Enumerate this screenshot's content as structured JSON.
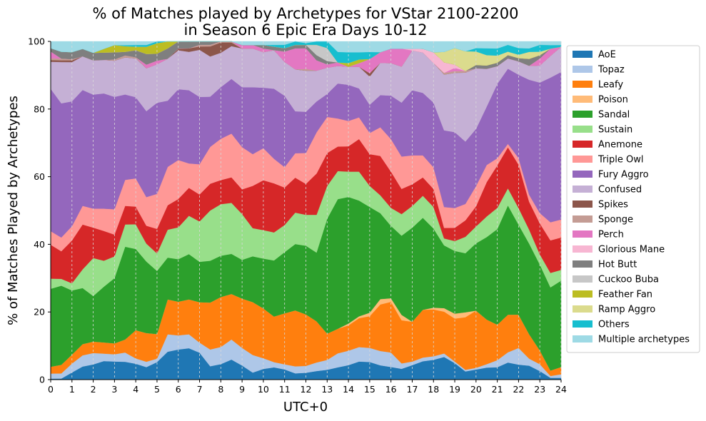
{
  "chart_data": {
    "type": "area",
    "stacked": true,
    "title_lines": [
      "% of Matches played by Archetypes for VStar 2100-2200",
      "in Season 6 Epic Era Days 10-12"
    ],
    "xlabel": "UTC+0",
    "ylabel": "% of Matches Played by Archetypes",
    "xlim": [
      0,
      24
    ],
    "ylim": [
      0,
      100
    ],
    "x_ticks": [
      "0",
      "1",
      "2",
      "3",
      "4",
      "5",
      "6",
      "7",
      "8",
      "9",
      "10",
      "11",
      "12",
      "13",
      "14",
      "15",
      "16",
      "17",
      "18",
      "19",
      "20",
      "21",
      "22",
      "23",
      "24"
    ],
    "y_ticks": [
      "0",
      "20",
      "40",
      "60",
      "80",
      "100"
    ],
    "grid": "vertical dashed",
    "legend_position": "outside right",
    "x": [
      0,
      0.5,
      1,
      1.5,
      2,
      2.5,
      3,
      3.5,
      4,
      4.5,
      5,
      5.5,
      6,
      6.5,
      7,
      7.5,
      8,
      8.5,
      9,
      9.5,
      10,
      10.5,
      11,
      11.5,
      12,
      12.5,
      13,
      13.5,
      14,
      14.5,
      15,
      15.5,
      16,
      16.5,
      17,
      17.5,
      18,
      18.5,
      19,
      19.5,
      20,
      20.5,
      21,
      21.5,
      22,
      22.5,
      23,
      23.5,
      24
    ],
    "series": [
      {
        "name": "AoE",
        "color": "#1f77b4",
        "values": [
          0.3,
          0.3,
          2,
          3.5,
          4,
          5,
          5,
          4.8,
          4.5,
          3.5,
          5,
          8,
          8.5,
          9,
          8,
          4,
          4.5,
          5.5,
          4,
          2,
          3,
          3.5,
          3,
          1.8,
          2,
          2.5,
          3,
          3.5,
          4,
          5,
          5,
          4,
          3.5,
          3,
          4,
          5,
          5.5,
          6.5,
          5,
          2.5,
          3,
          3.5,
          3.5,
          5,
          4.5,
          4,
          2.5,
          0.5,
          0.5
        ]
      },
      {
        "name": "Topaz",
        "color": "#aec7e8",
        "values": [
          1.5,
          1.5,
          2.5,
          3,
          3,
          2,
          2,
          2.5,
          1.5,
          1.5,
          1,
          5,
          4,
          4,
          3,
          5,
          5,
          5.5,
          5,
          5,
          3,
          1.5,
          1.5,
          2,
          2,
          2.5,
          3,
          4,
          4,
          4,
          4,
          4,
          4,
          1.5,
          1,
          1,
          1,
          1,
          0.5,
          0.5,
          0.5,
          1,
          2,
          3,
          5,
          2,
          2,
          0.5,
          1
        ]
      },
      {
        "name": "Leafy",
        "color": "#ff7f0e",
        "values": [
          2,
          2.5,
          2.5,
          3,
          3,
          3,
          3,
          3.5,
          8,
          8,
          7,
          10,
          9.5,
          10,
          12,
          14,
          14.5,
          12.5,
          14,
          15,
          14,
          13,
          15,
          16,
          15,
          12,
          8,
          7,
          7,
          8,
          9,
          13,
          14,
          12,
          11,
          13,
          13,
          12,
          13,
          16,
          17,
          13,
          10,
          11,
          10,
          7,
          4,
          1.5,
          2
        ]
      },
      {
        "name": "Poison",
        "color": "#ffbb78",
        "values": [
          0,
          0,
          0,
          0,
          0,
          0,
          0,
          0,
          0,
          0,
          0,
          0,
          0,
          0,
          0,
          0,
          0,
          0,
          0,
          0,
          0,
          0,
          0,
          0,
          0,
          0,
          0,
          0,
          0.5,
          0.5,
          1,
          1.5,
          1,
          1.5,
          0,
          0,
          0.5,
          1,
          1.5,
          1.5,
          0,
          0,
          0,
          0,
          0,
          0,
          0,
          0,
          0
        ]
      },
      {
        "name": "Sandal",
        "color": "#2ca02c",
        "values": [
          23,
          23,
          18,
          15,
          12,
          15,
          18,
          25,
          23,
          20,
          18,
          12,
          12,
          13,
          12,
          12.5,
          12,
          11,
          11,
          13,
          14,
          16,
          18,
          19,
          20,
          20,
          35,
          37,
          35,
          32,
          30,
          24,
          20,
          22,
          26,
          25,
          22,
          18,
          19,
          18,
          20,
          24,
          27,
          32,
          27,
          26,
          25,
          23,
          24
        ]
      },
      {
        "name": "Sustain",
        "color": "#98df8a",
        "values": [
          3,
          2,
          2,
          5,
          10,
          7,
          6,
          6,
          7,
          5,
          5,
          8,
          9,
          11,
          12,
          15,
          15,
          14,
          13,
          8,
          8,
          8,
          8,
          9,
          9,
          11,
          10,
          8,
          7,
          8,
          6,
          5,
          5,
          6,
          6,
          6,
          6,
          2,
          3,
          5,
          5,
          6,
          6,
          5,
          5,
          4,
          3,
          4,
          3
        ]
      },
      {
        "name": "Anemone",
        "color": "#d62728",
        "values": [
          10,
          8,
          12,
          12,
          8,
          8,
          6,
          5,
          5,
          5,
          7,
          7,
          8,
          8,
          8,
          8,
          7,
          7,
          7,
          12,
          14,
          14,
          11,
          10,
          9,
          12,
          10,
          7,
          7,
          9,
          9,
          11,
          10,
          7,
          6,
          5,
          5,
          3,
          4,
          5,
          6,
          10,
          12,
          12,
          13,
          8,
          9,
          9,
          9
        ]
      },
      {
        "name": "Triple Owl",
        "color": "#ff9896",
        "values": [
          4,
          4,
          4,
          5,
          5,
          6,
          7,
          7,
          8,
          8,
          10,
          11,
          11,
          7,
          9,
          11,
          12,
          12,
          12,
          9,
          9,
          7,
          6,
          7,
          9,
          12,
          11,
          8,
          7,
          6,
          6,
          8,
          9,
          9,
          8,
          6,
          6,
          6,
          6,
          5,
          6,
          5,
          2,
          1,
          2,
          2,
          3,
          5,
          5
        ]
      },
      {
        "name": "Fury Aggro",
        "color": "#9467bd",
        "values": [
          42,
          39,
          35,
          31,
          30,
          31,
          31,
          23,
          23,
          24,
          26,
          19,
          20,
          21,
          20,
          15,
          15,
          15,
          17,
          19,
          17,
          20,
          21,
          12,
          12,
          9,
          7,
          10,
          10,
          8,
          8,
          9,
          12,
          15,
          18,
          17,
          18,
          22,
          23,
          19,
          17,
          17,
          21,
          22,
          25,
          33,
          38,
          40,
          41
        ]
      },
      {
        "name": "Confused",
        "color": "#c5b0d5",
        "values": [
          8,
          12,
          11,
          9,
          9,
          9,
          10,
          10,
          11,
          12,
          11,
          12,
          11,
          11,
          14,
          12,
          10,
          9,
          11,
          11,
          10,
          11,
          10,
          12,
          12,
          9,
          8,
          5,
          5,
          6,
          8,
          9,
          9,
          10,
          11,
          11,
          11,
          16,
          18,
          21,
          18,
          11,
          5,
          3,
          4,
          4,
          5,
          6,
          7
        ]
      },
      {
        "name": "Spikes",
        "color": "#8c564b",
        "values": [
          0.5,
          0.5,
          0.5,
          0,
          0,
          0,
          0,
          0,
          0,
          0,
          0,
          0,
          0.5,
          1,
          1,
          3,
          3,
          1,
          0,
          0,
          0,
          0,
          0,
          0,
          0,
          0,
          0,
          0,
          0,
          0,
          1,
          0,
          0,
          0,
          0,
          0,
          0,
          0,
          0,
          0,
          0,
          0,
          0,
          0,
          0,
          0,
          0,
          0,
          0
        ]
      },
      {
        "name": "Sponge",
        "color": "#c49c94",
        "values": [
          0.5,
          0.5,
          0.3,
          0,
          0,
          0,
          0.3,
          0.5,
          0.3,
          0,
          0,
          0,
          0,
          0,
          0.5,
          0.5,
          0.3,
          0.3,
          0,
          0,
          0,
          0,
          0,
          0,
          0.5,
          0,
          0,
          0,
          0,
          0,
          0,
          0,
          0,
          0,
          0,
          0,
          0,
          0.5,
          0.5,
          0.5,
          0,
          0,
          0,
          0,
          0,
          0,
          0,
          0,
          0
        ]
      },
      {
        "name": "Perch",
        "color": "#e377c2",
        "values": [
          2,
          0,
          0,
          0,
          0,
          0,
          0,
          0,
          0,
          1,
          1,
          0,
          0,
          0,
          0,
          0,
          0,
          0,
          1,
          1,
          1,
          0,
          3,
          6,
          6,
          3,
          1,
          1,
          0,
          1,
          4,
          3,
          4,
          5,
          0,
          0,
          0,
          0,
          1,
          0,
          0,
          0,
          0,
          0,
          0,
          0,
          2,
          2,
          0
        ]
      },
      {
        "name": "Glorious Mane",
        "color": "#f7b6d2",
        "values": [
          0,
          0,
          0,
          0,
          0,
          0,
          0,
          0,
          0,
          0,
          0,
          0,
          0,
          0,
          0,
          0,
          0,
          0,
          0,
          0,
          0,
          0,
          0,
          0,
          0,
          0,
          0,
          0,
          0,
          0,
          0,
          0,
          0,
          0,
          0.5,
          1,
          3,
          3,
          1,
          0,
          0,
          0,
          0,
          0,
          0,
          0,
          0,
          0,
          0
        ]
      },
      {
        "name": "Hot Butt",
        "color": "#7f7f7f",
        "values": [
          1,
          2,
          2,
          2,
          2,
          2,
          2,
          1,
          2,
          3,
          2,
          3,
          2,
          2,
          1,
          1,
          0,
          0,
          0,
          0,
          1,
          1,
          1,
          1,
          1,
          1.5,
          1,
          0,
          0,
          0,
          0,
          0,
          0,
          0,
          0,
          0,
          0,
          0,
          0,
          0,
          1,
          1,
          1,
          1,
          1,
          2,
          1,
          0,
          0
        ]
      },
      {
        "name": "Cuckoo Buba",
        "color": "#c7c7c7",
        "values": [
          0,
          0,
          0,
          0,
          0,
          0,
          0,
          0,
          0,
          0,
          0,
          0,
          0,
          0,
          0,
          0,
          0,
          0,
          0,
          0,
          0,
          0,
          0,
          0,
          0,
          3,
          4,
          0,
          0,
          0,
          0,
          0,
          0,
          0,
          0,
          0,
          0,
          0,
          0,
          0,
          0,
          0,
          0,
          0,
          0,
          0,
          0,
          0,
          0
        ]
      },
      {
        "name": "Feather Fan",
        "color": "#bcbd22",
        "values": [
          0,
          0,
          0,
          0,
          0,
          1,
          2,
          1.5,
          1,
          2,
          3,
          2,
          0,
          0,
          0,
          0,
          0,
          0,
          0,
          0,
          0,
          0,
          0,
          0,
          0,
          0,
          0,
          0,
          1,
          1,
          0,
          0,
          0,
          0,
          0,
          0,
          0,
          0,
          0,
          0,
          0,
          0,
          0,
          0,
          0,
          0,
          0,
          0,
          0
        ]
      },
      {
        "name": "Ramp Aggro",
        "color": "#dbdb8d",
        "values": [
          0,
          0,
          0,
          0,
          0,
          0,
          0,
          0,
          0,
          0,
          0,
          0,
          0,
          0,
          0,
          0,
          0,
          0,
          0,
          0,
          0,
          0,
          0,
          0,
          0,
          0,
          0,
          0,
          0,
          0,
          0,
          0,
          0,
          0,
          0,
          0,
          0,
          3,
          5,
          6,
          4,
          3,
          2,
          1,
          1,
          2,
          1,
          0,
          0
        ]
      },
      {
        "name": "Others",
        "color": "#17becf",
        "values": [
          0,
          0,
          0,
          0,
          0,
          0,
          0,
          0.3,
          0.5,
          0.5,
          0.5,
          0,
          0,
          0,
          0,
          0,
          0,
          0,
          0,
          0,
          0,
          0.5,
          1,
          1,
          0.5,
          1,
          2,
          3,
          3,
          2,
          2,
          0,
          0,
          0,
          0,
          0,
          0,
          0,
          0,
          0,
          1,
          2,
          2,
          2,
          2,
          1,
          2,
          1,
          0.5
        ]
      },
      {
        "name": "Multiple archetypes",
        "color": "#9edae5",
        "values": [
          2,
          3,
          3,
          2,
          3,
          2,
          1,
          1,
          1,
          1,
          0,
          0,
          0,
          0,
          0,
          0,
          0,
          0,
          1,
          1,
          1,
          1,
          1,
          0,
          0.5,
          0,
          0,
          3,
          3,
          3,
          3,
          3,
          2,
          2,
          2,
          2,
          3,
          3,
          2,
          3,
          2,
          2,
          2,
          1,
          2,
          2,
          1,
          1,
          1
        ]
      }
    ]
  }
}
